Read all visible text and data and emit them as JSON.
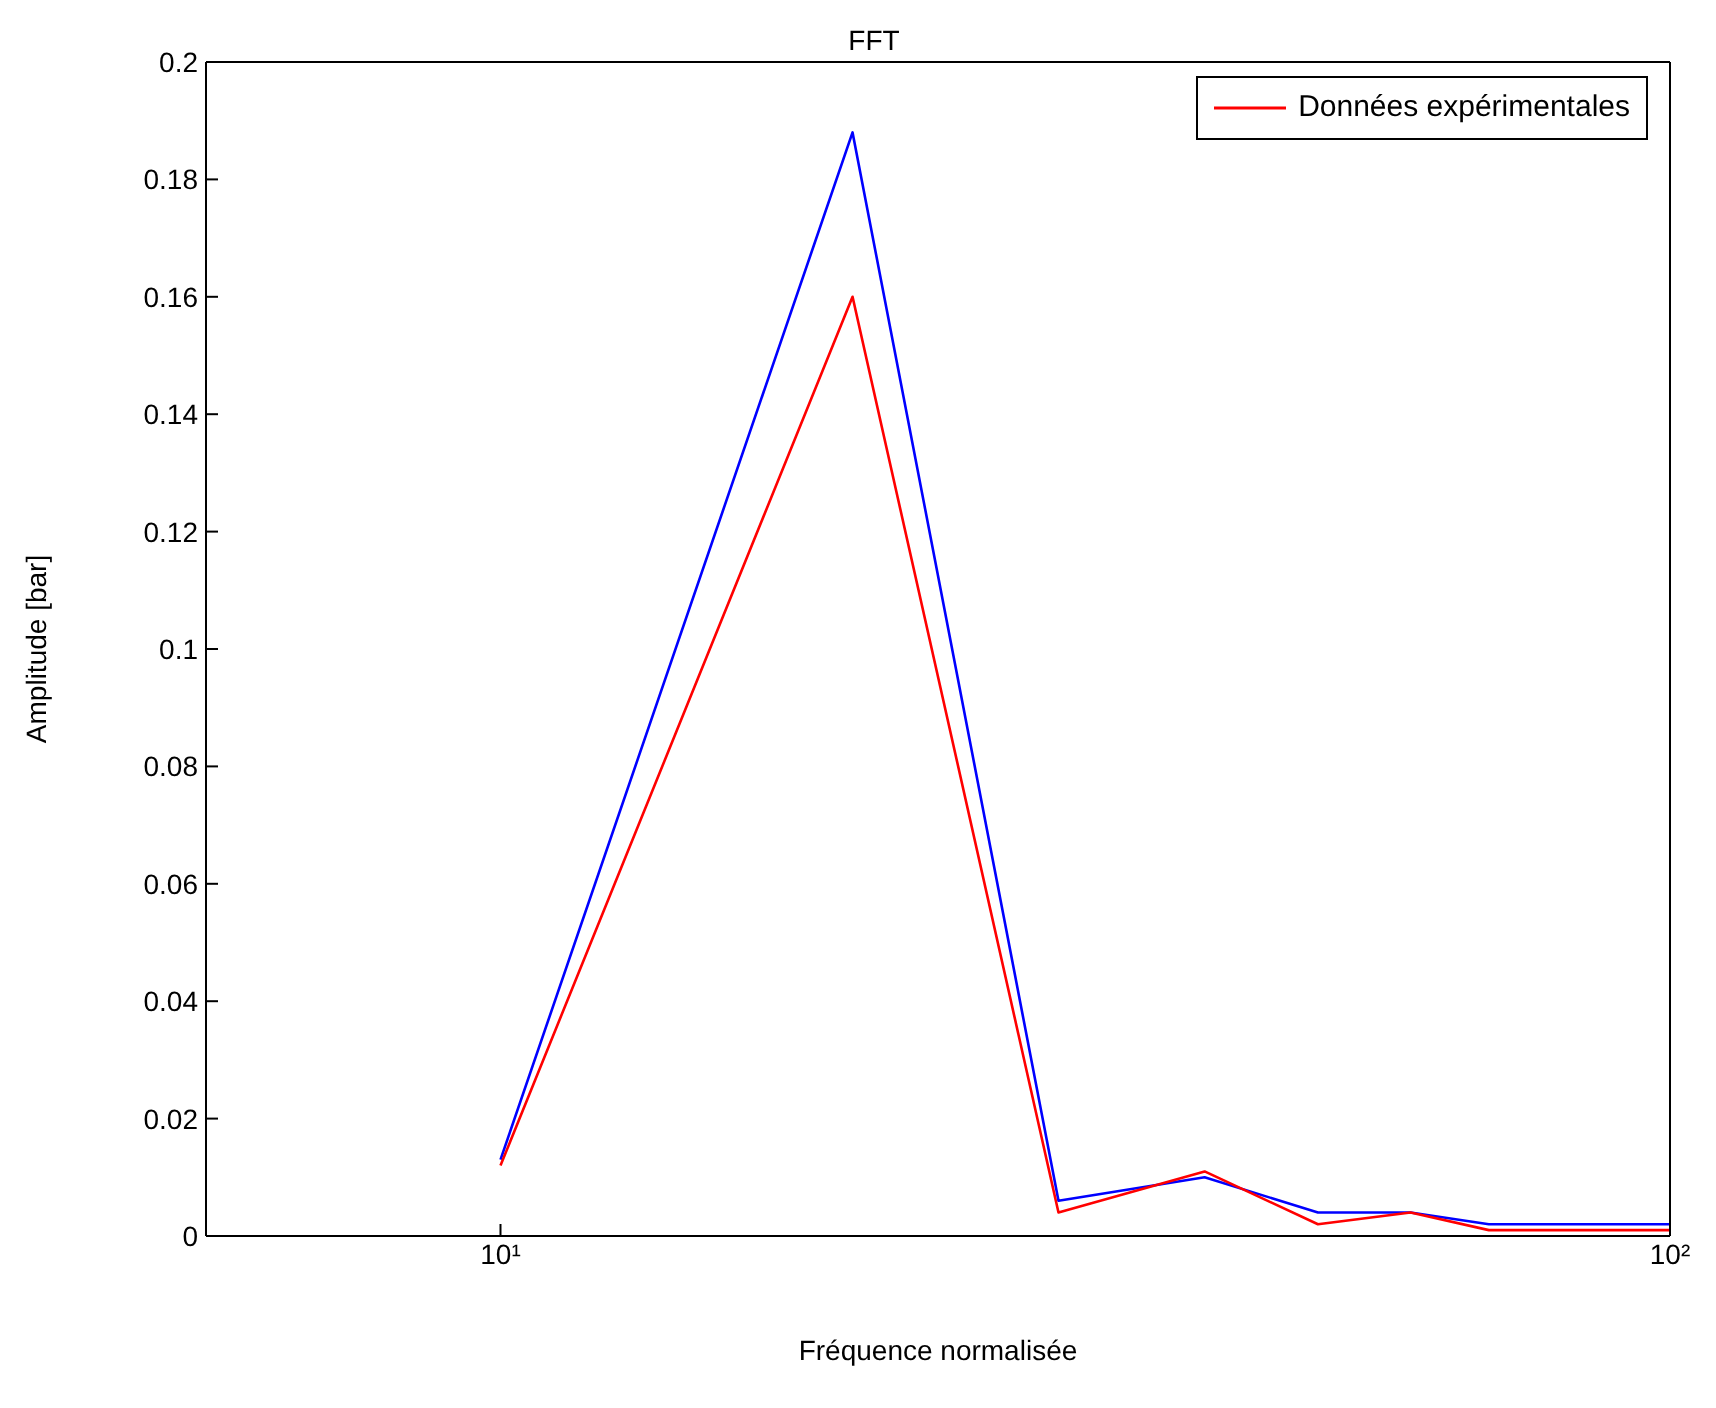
{
  "chart_data": {
    "type": "line",
    "title": "FFT",
    "xlabel": "Fréquence normalisée",
    "ylabel": "Amplitude [bar]",
    "log": "x",
    "xlim": [
      5.6,
      100
    ],
    "xticks": [
      {
        "value": 10,
        "label": "10¹"
      },
      {
        "value": 100,
        "label": "10²"
      }
    ],
    "ylim": [
      0,
      0.2
    ],
    "yticks": [
      0,
      0.02,
      0.04,
      0.06,
      0.08,
      0.1,
      0.12,
      0.14,
      0.16,
      0.18,
      0.2
    ],
    "x": [
      10,
      20,
      30,
      40,
      50,
      60,
      70,
      80,
      90,
      100
    ],
    "series": [
      {
        "color": "#0000ff",
        "values": [
          0.013,
          0.188,
          0.006,
          0.01,
          0.004,
          0.004,
          0.002,
          0.002,
          0.002,
          0.002
        ]
      },
      {
        "name": "Données expérimentales",
        "color": "#ff0000",
        "values": [
          0.012,
          0.16,
          0.004,
          0.011,
          0.002,
          0.004,
          0.001,
          0.001,
          0.001,
          0.001
        ]
      }
    ],
    "grid": false,
    "legend": "top right",
    "marker": "none",
    "line_style": "solid"
  }
}
